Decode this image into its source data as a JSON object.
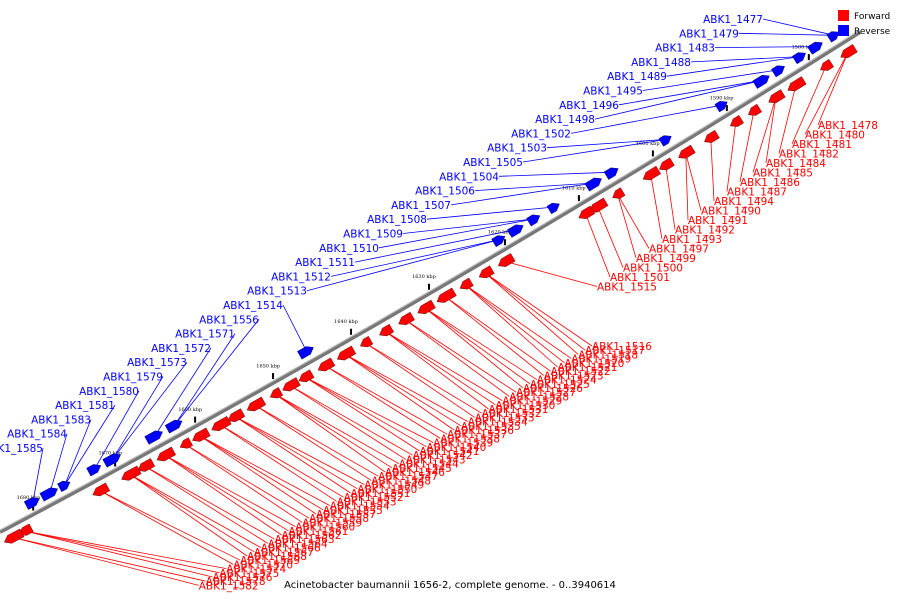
{
  "legend": {
    "forward": {
      "label": "Forward",
      "color": "#ff0000"
    },
    "reverse": {
      "label": "Reverse",
      "color": "#0000ff"
    }
  },
  "caption": "Acinetobacter baumannii 1656-2, complete genome. - 0..3940614",
  "scale": {
    "unit": "kbp",
    "ticks": [
      "1580 kbp",
      "1590 kbp",
      "1600 kbp",
      "1610 kbp",
      "1620 kbp",
      "1630 kbp",
      "1640 kbp",
      "1650 kbp",
      "1660 kbp",
      "1670 kbp",
      "1680 kbp"
    ]
  },
  "reverse_labels": [
    "ABK1_1477",
    "ABK1_1479",
    "ABK1_1483",
    "ABK1_1488",
    "ABK1_1489",
    "ABK1_1495",
    "ABK1_1496",
    "ABK1_1498",
    "ABK1_1502",
    "ABK1_1503",
    "ABK1_1505",
    "ABK1_1504",
    "ABK1_1506",
    "ABK1_1507",
    "ABK1_1508",
    "ABK1_1509",
    "ABK1_1510",
    "ABK1_1511",
    "ABK1_1512",
    "ABK1_1513",
    "ABK1_1514",
    "ABK1_1556",
    "ABK1_1571",
    "ABK1_1572",
    "ABK1_1573",
    "ABK1_1579",
    "ABK1_1580",
    "ABK1_1581",
    "ABK1_1583",
    "ABK1_1584",
    "ABK1_1585"
  ],
  "forward_labels": [
    "ABK1_1478",
    "ABK1_1480",
    "ABK1_1481",
    "ABK1_1482",
    "ABK1_1484",
    "ABK1_1485",
    "ABK1_1486",
    "ABK1_1487",
    "ABK1_1494",
    "ABK1_1490",
    "ABK1_1491",
    "ABK1_1492",
    "ABK1_1493",
    "ABK1_1497",
    "ABK1_1499",
    "ABK1_1500",
    "ABK1_1501",
    "ABK1_1515",
    "ABK1_1516",
    "ABK1_1517",
    "ABK1_1518",
    "ABK1_1519",
    "ABK1_1520",
    "ABK1_1521",
    "ABK1_1522",
    "ABK1_1523",
    "ABK1_1524",
    "ABK1_1525",
    "ABK1_1526",
    "ABK1_1527",
    "ABK1_1528",
    "ABK1_1529",
    "ABK1_1530",
    "ABK1_1531",
    "ABK1_1532",
    "ABK1_1533",
    "ABK1_1534",
    "ABK1_1535",
    "ABK1_1536",
    "ABK1_1537",
    "ABK1_1538",
    "ABK1_1539",
    "ABK1_1540",
    "ABK1_1541",
    "ABK1_1542",
    "ABK1_1543",
    "ABK1_1544",
    "ABK1_1545",
    "ABK1_1546",
    "ABK1_1547",
    "ABK1_1548",
    "ABK1_1549",
    "ABK1_1550",
    "ABK1_1551",
    "ABK1_1552",
    "ABK1_1553",
    "ABK1_1554",
    "ABK1_1555",
    "ABK1_1557",
    "ABK1_1558",
    "ABK1_1559",
    "ABK1_1560",
    "ABK1_1561",
    "ABK1_1562",
    "ABK1_1563",
    "ABK1_1564",
    "ABK1_1566",
    "ABK1_1567",
    "ABK1_1568",
    "ABK1_1569",
    "ABK1_1570",
    "ABK1_1574",
    "ABK1_1575",
    "ABK1_1576",
    "ABK1_1578",
    "ABK1_1582"
  ]
}
